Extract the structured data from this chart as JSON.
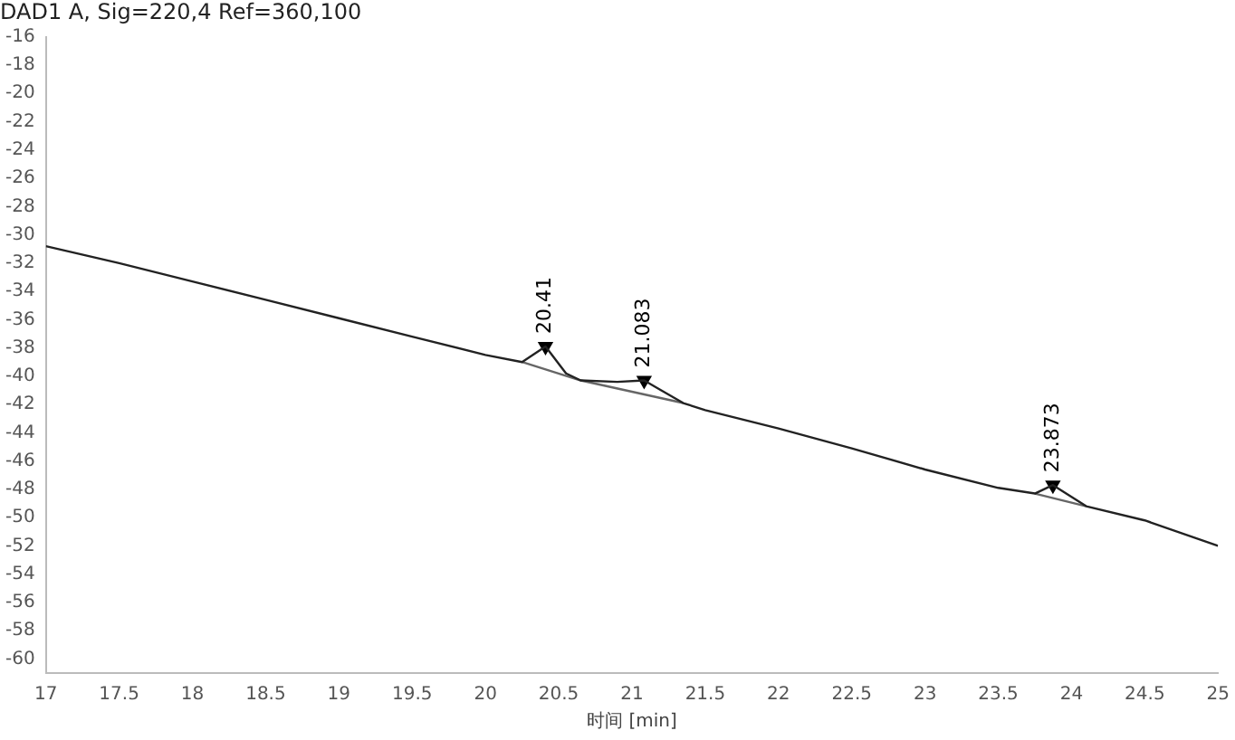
{
  "chart_data": {
    "type": "line",
    "title": "DAD1 A, Sig=220,4 Ref=360,100",
    "xlabel": "时间 [min]",
    "series": [
      {
        "color": "#222222",
        "x": [
          17,
          17.5,
          18,
          18.5,
          19,
          19.5,
          20,
          20.25,
          20.41,
          20.55,
          20.65,
          20.9,
          21.083,
          21.2,
          21.35,
          21.5,
          22,
          22.5,
          23,
          23.5,
          23.75,
          23.873,
          24.1,
          24.5,
          25
        ],
        "values": [
          -30.8,
          -32.0,
          -33.3,
          -34.6,
          -35.9,
          -37.2,
          -38.5,
          -39.0,
          -37.9,
          -39.8,
          -40.3,
          -40.4,
          -40.3,
          -41.0,
          -41.9,
          -42.4,
          -43.7,
          -45.1,
          -46.6,
          -47.9,
          -48.3,
          -47.7,
          -49.2,
          -50.2,
          -52.0
        ]
      },
      {
        "color": "#666666",
        "x": [
          20.25,
          20.65,
          21.35
        ],
        "values": [
          -39.0,
          -40.3,
          -41.9
        ]
      },
      {
        "color": "#666666",
        "x": [
          23.75,
          24.1
        ],
        "values": [
          -48.3,
          -49.2
        ]
      },
      {
        "type": "scatter",
        "marker": "triangle",
        "color": "#000000",
        "x": [
          20.41,
          21.083,
          23.873
        ],
        "values": [
          -37.9,
          -40.3,
          -47.7
        ]
      }
    ],
    "annotations": [
      {
        "text": "20.41",
        "x": 20.41,
        "y": -37.9
      },
      {
        "text": "21.083",
        "x": 21.083,
        "y": -40.3
      },
      {
        "text": "23.873",
        "x": 23.873,
        "y": -47.7
      }
    ],
    "xlim": [
      17,
      25
    ],
    "xticks": [
      17,
      17.5,
      18,
      18.5,
      19,
      19.5,
      20,
      20.5,
      21,
      21.5,
      22,
      22.5,
      23,
      23.5,
      24,
      24.5,
      25
    ],
    "ylim": [
      -61,
      -16
    ],
    "yticks": [
      -16,
      -18,
      -20,
      -22,
      -24,
      -26,
      -28,
      -30,
      -32,
      -34,
      -36,
      -38,
      -40,
      -42,
      -44,
      -46,
      -48,
      -50,
      -52,
      -54,
      -56,
      -58,
      -60
    ],
    "grid": false,
    "legend": false,
    "marker": "none",
    "line_style": "solid"
  }
}
